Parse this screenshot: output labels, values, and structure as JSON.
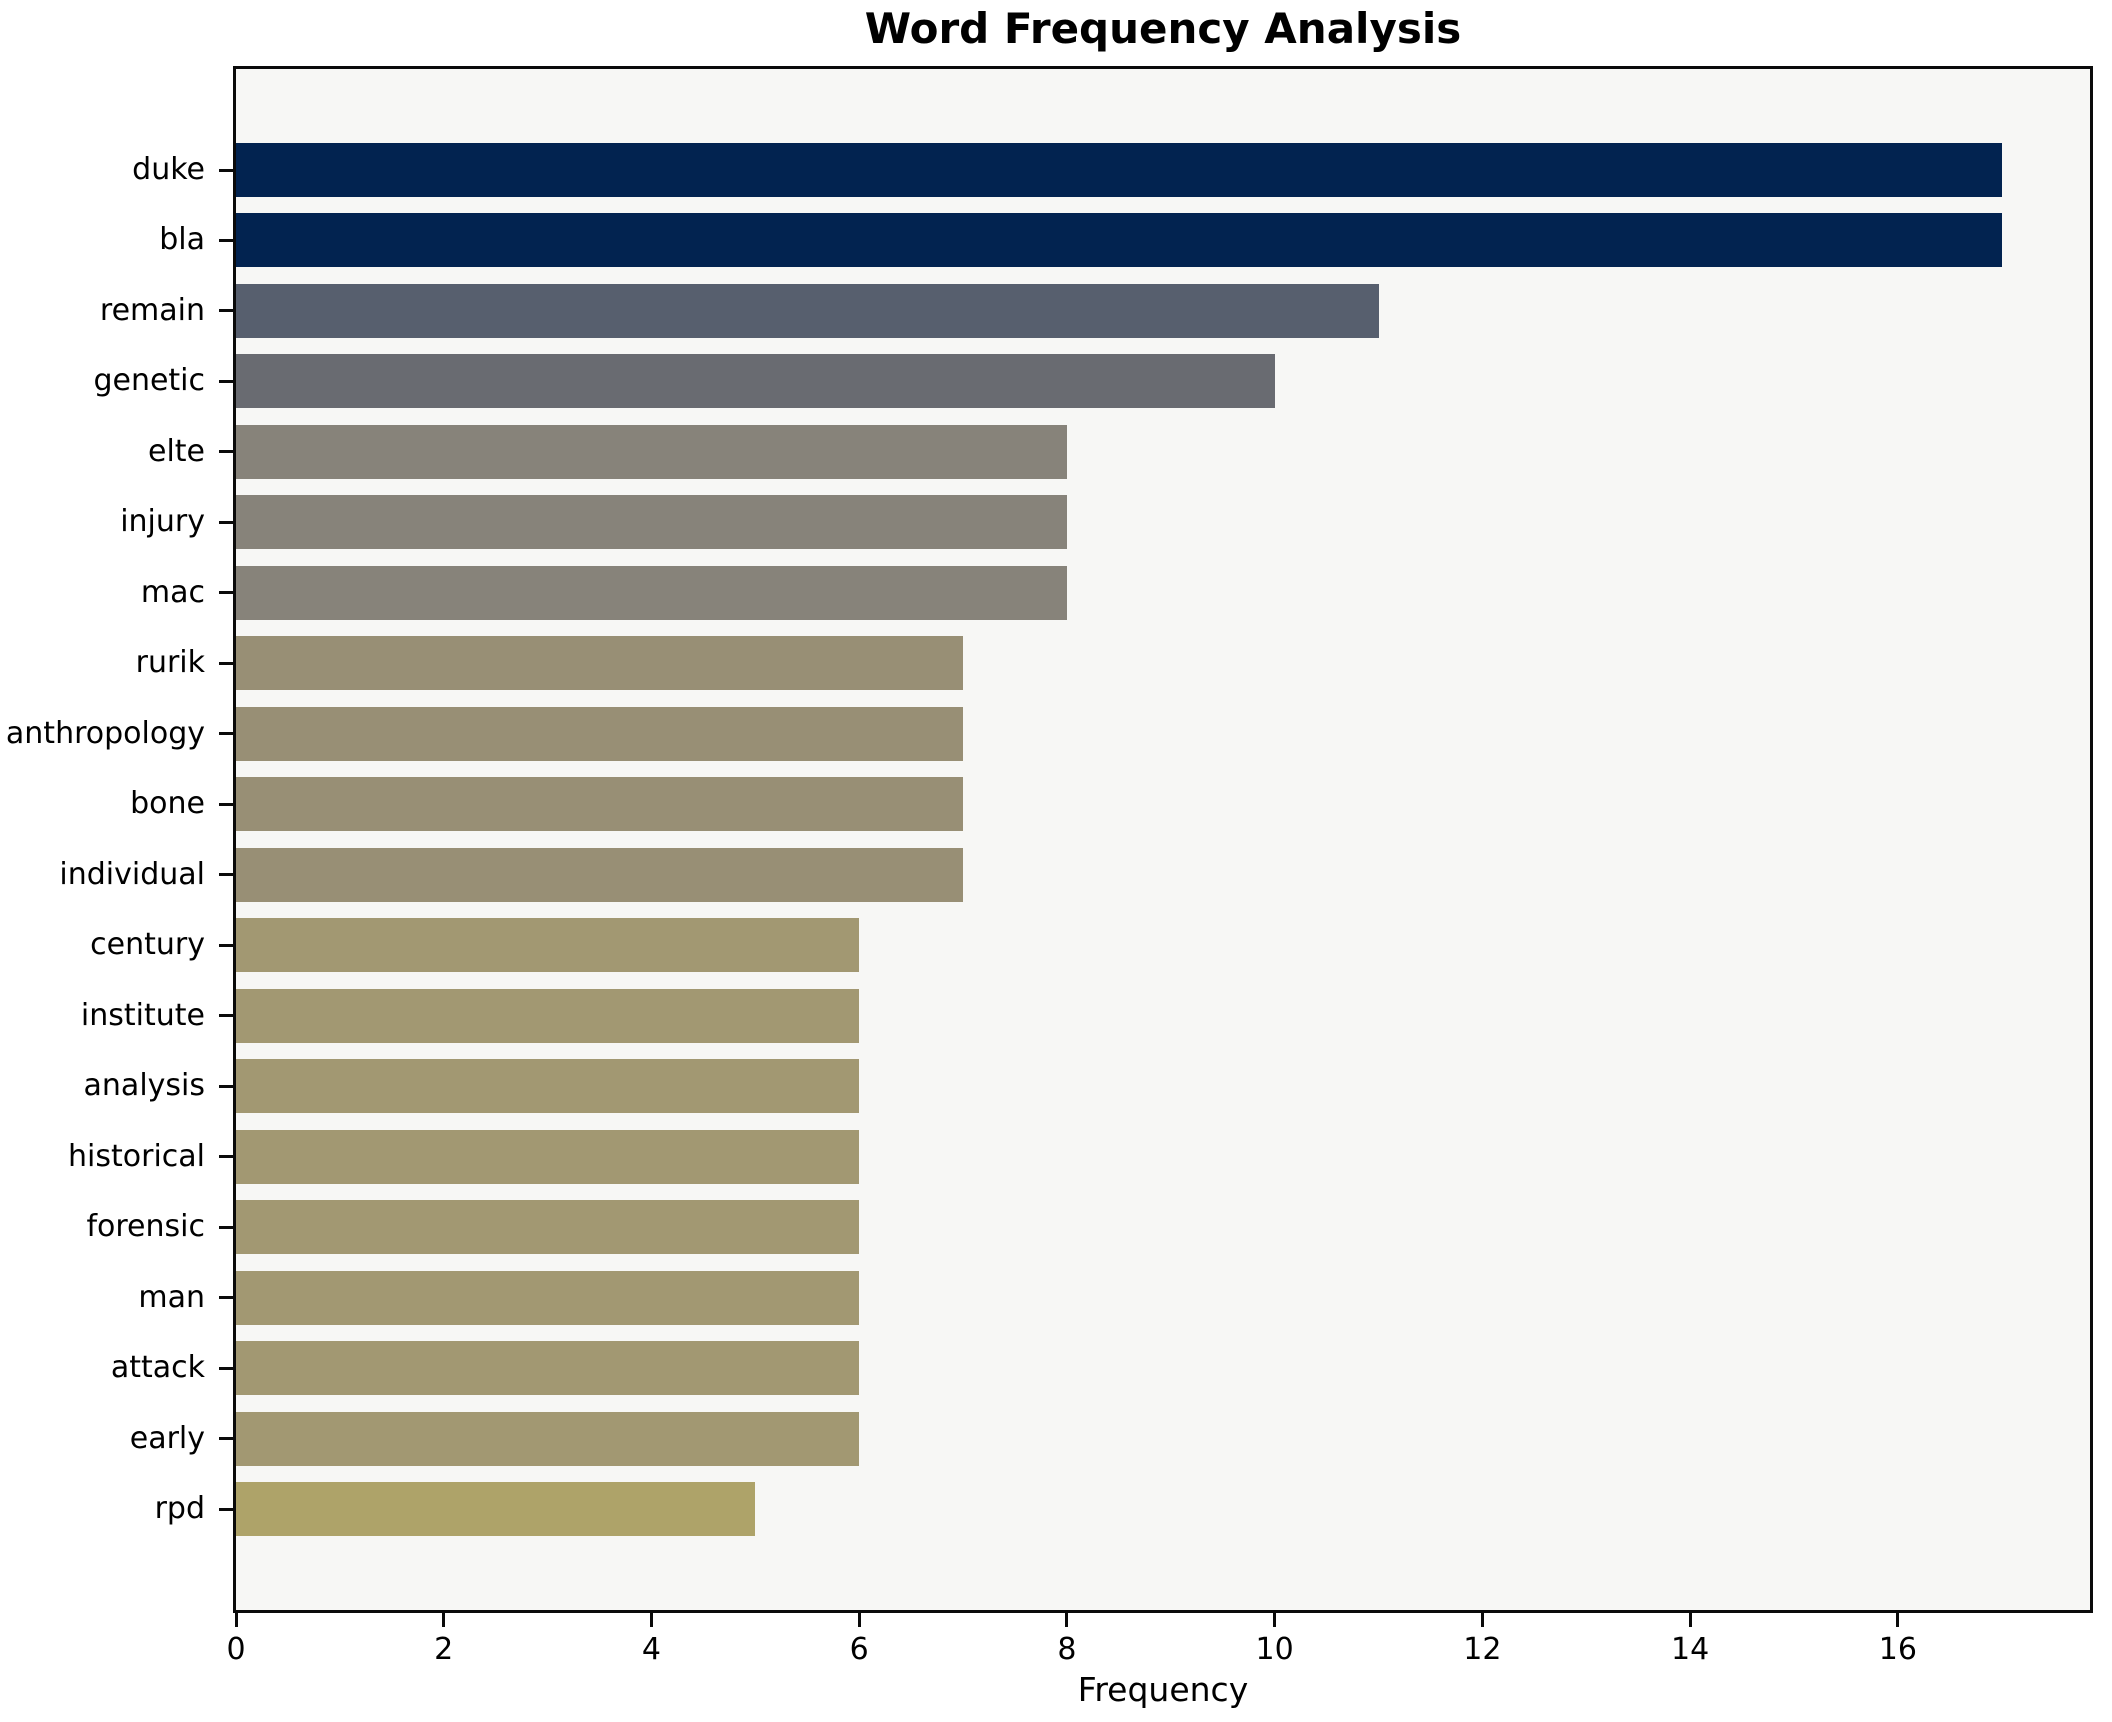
{
  "title": "Word Frequency Analysis",
  "chart_data": {
    "type": "bar",
    "orientation": "horizontal",
    "title": "Word Frequency Analysis",
    "xlabel": "Frequency",
    "ylabel": "",
    "grid": false,
    "legend": false,
    "plot_background": "#f7f7f5",
    "categories": [
      "duke",
      "bla",
      "remain",
      "genetic",
      "elte",
      "injury",
      "mac",
      "rurik",
      "anthropology",
      "bone",
      "individual",
      "century",
      "institute",
      "analysis",
      "historical",
      "forensic",
      "man",
      "attack",
      "early",
      "rpd"
    ],
    "values": [
      17,
      17,
      11,
      10,
      8,
      8,
      8,
      7,
      7,
      7,
      7,
      6,
      6,
      6,
      6,
      6,
      6,
      6,
      6,
      5
    ],
    "bar_colors": [
      "#022350",
      "#022350",
      "#575f6e",
      "#696b71",
      "#87837a",
      "#87837a",
      "#87837a",
      "#988f75",
      "#988f75",
      "#988f75",
      "#988f75",
      "#a29872",
      "#a29872",
      "#a29872",
      "#a29872",
      "#a29872",
      "#a29872",
      "#a29872",
      "#a29872",
      "#aea369"
    ],
    "xticks": [
      0,
      2,
      4,
      6,
      8,
      10,
      12,
      14,
      16
    ],
    "xlim": [
      0,
      17.85
    ]
  }
}
